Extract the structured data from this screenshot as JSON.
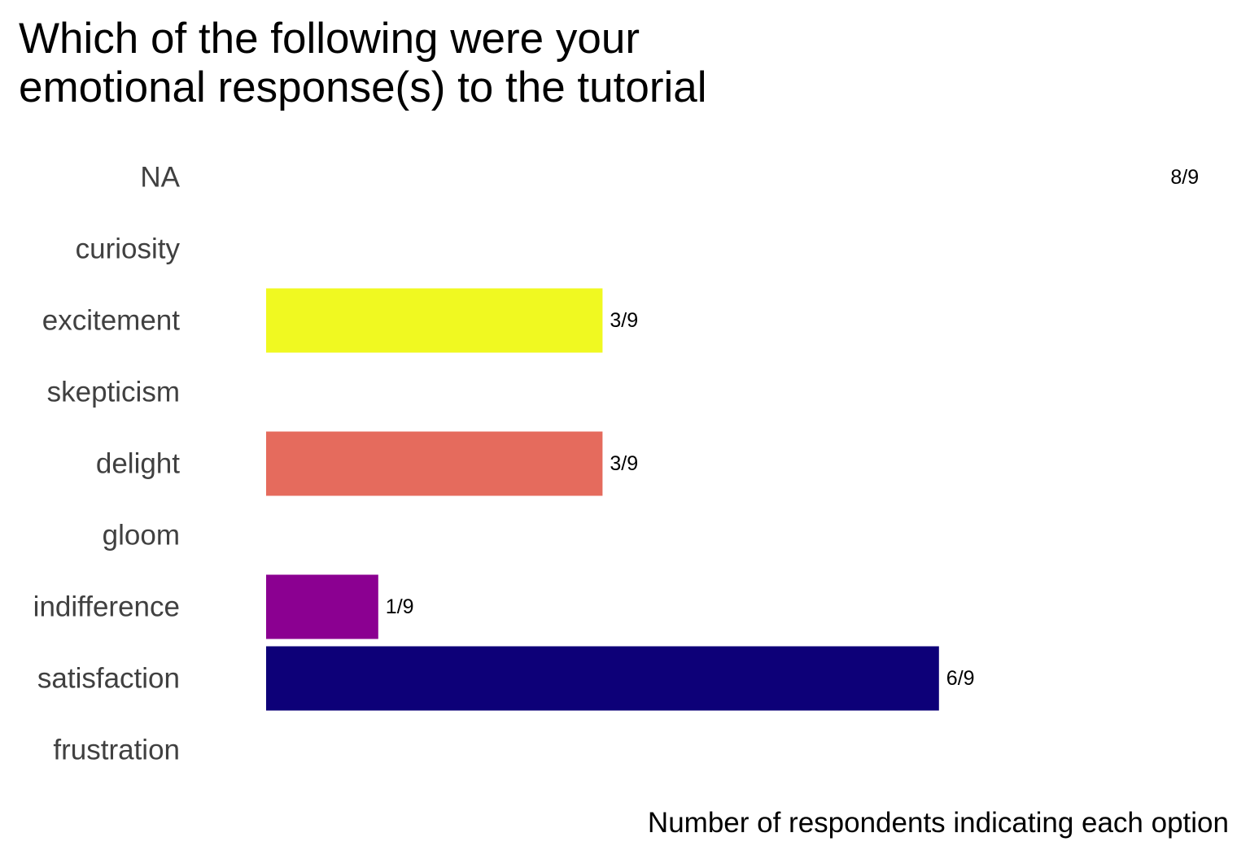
{
  "chart_data": {
    "type": "bar",
    "orientation": "horizontal",
    "title_lines": [
      "Which of the following were your",
      "emotional response(s) to the tutorial"
    ],
    "xlabel": "Number of respondents indicating each option",
    "ylabel": "",
    "total_respondents": 9,
    "xlim": [
      0,
      9
    ],
    "grid": false,
    "legend": "none",
    "categories": [
      "NA",
      "curiosity",
      "excitement",
      "skepticism",
      "delight",
      "gloom",
      "indifference",
      "satisfaction",
      "frustration"
    ],
    "values": [
      8,
      0,
      3,
      0,
      3,
      0,
      1,
      6,
      0
    ],
    "value_labels": [
      "8/9",
      "",
      "3/9",
      "",
      "3/9",
      "",
      "1/9",
      "6/9",
      ""
    ],
    "colors": [
      "#FFFFFF",
      "#FBD524",
      "#F0F921",
      "#F89441",
      "#E56B5D",
      "#CC4778",
      "#8B0091",
      "#0D0078",
      "#000000"
    ]
  }
}
